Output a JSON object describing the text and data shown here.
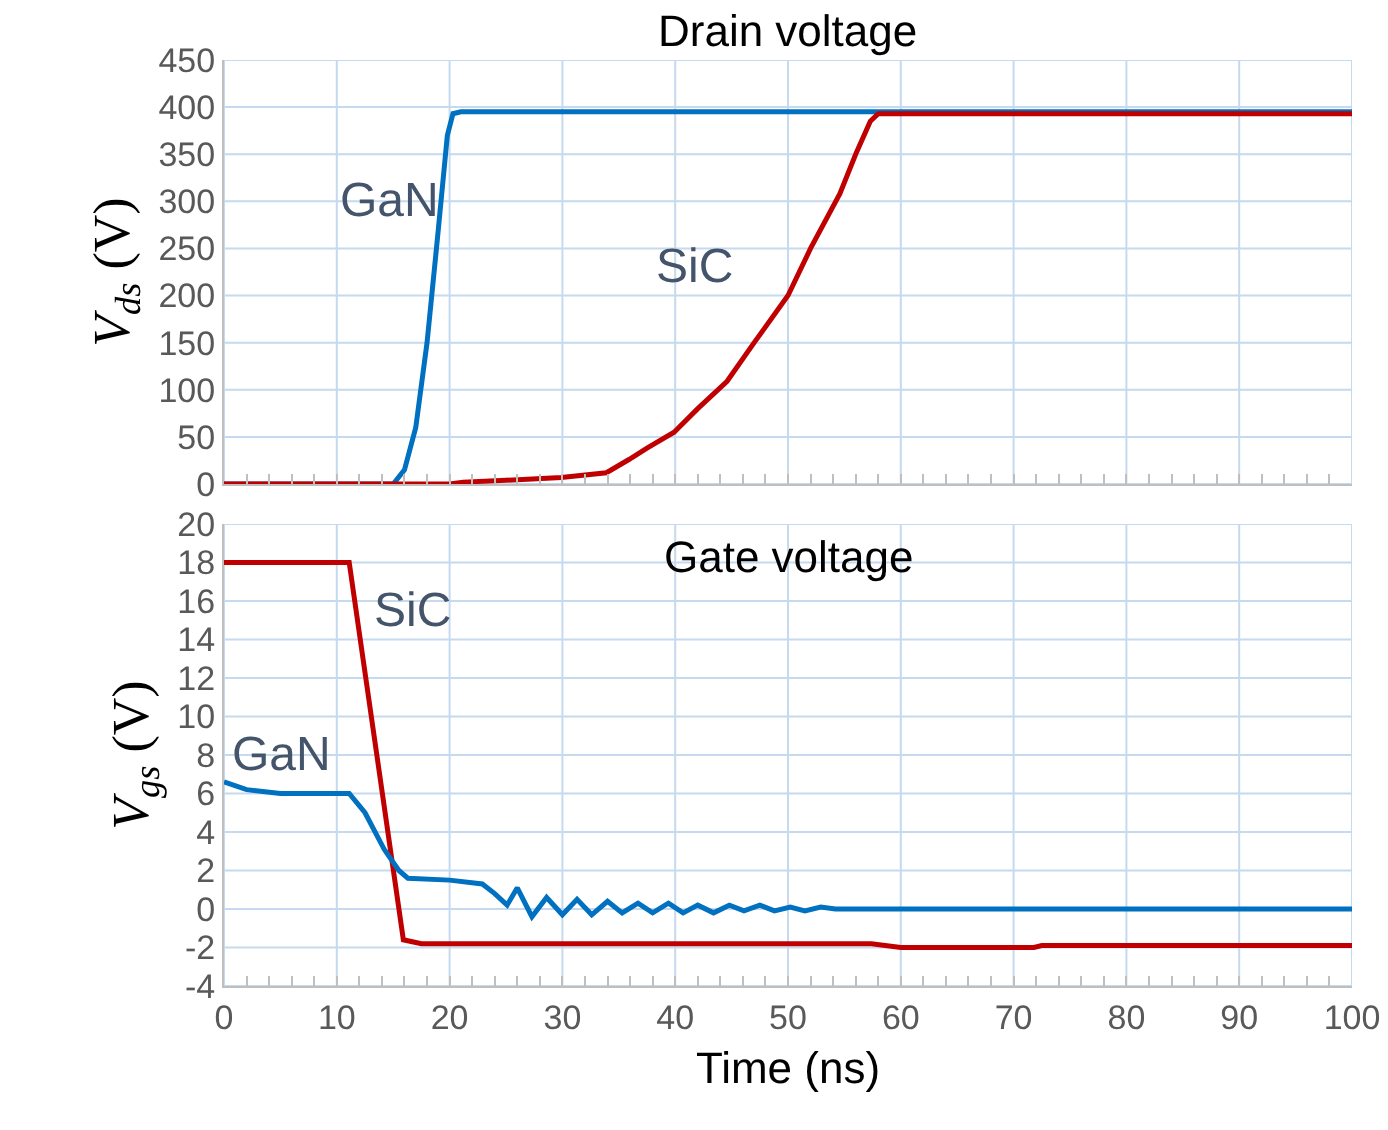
{
  "chart_data": [
    {
      "type": "line",
      "title": "Drain voltage",
      "ylabel": "V$_{ds}$ (V)",
      "xlim": [
        0,
        100
      ],
      "ylim": [
        0,
        450
      ],
      "grid": true,
      "tick_labels": "y",
      "xticks": [
        0,
        {
          "value": 2,
          "label": null
        },
        {
          "value": 4,
          "label": null
        },
        {
          "value": 6,
          "label": null
        },
        {
          "value": 8,
          "label": null
        },
        10,
        {
          "value": 12,
          "label": null
        },
        {
          "value": 14,
          "label": null
        },
        {
          "value": 16,
          "label": null
        },
        {
          "value": 18,
          "label": null
        },
        20,
        {
          "value": 22,
          "label": null
        },
        {
          "value": 24,
          "label": null
        },
        {
          "value": 26,
          "label": null
        },
        {
          "value": 28,
          "label": null
        },
        30,
        {
          "value": 32,
          "label": null
        },
        {
          "value": 34,
          "label": null
        },
        {
          "value": 36,
          "label": null
        },
        {
          "value": 38,
          "label": null
        },
        40,
        {
          "value": 42,
          "label": null
        },
        {
          "value": 44,
          "label": null
        },
        {
          "value": 46,
          "label": null
        },
        {
          "value": 48,
          "label": null
        },
        50,
        {
          "value": 52,
          "label": null
        },
        {
          "value": 54,
          "label": null
        },
        {
          "value": 56,
          "label": null
        },
        {
          "value": 58,
          "label": null
        },
        60,
        {
          "value": 62,
          "label": null
        },
        {
          "value": 64,
          "label": null
        },
        {
          "value": 66,
          "label": null
        },
        {
          "value": 68,
          "label": null
        },
        70,
        {
          "value": 72,
          "label": null
        },
        {
          "value": 74,
          "label": null
        },
        {
          "value": 76,
          "label": null
        },
        {
          "value": 78,
          "label": null
        },
        80,
        {
          "value": 82,
          "label": null
        },
        {
          "value": 84,
          "label": null
        },
        {
          "value": 86,
          "label": null
        },
        {
          "value": 88,
          "label": null
        },
        90,
        {
          "value": 92,
          "label": null
        },
        {
          "value": 94,
          "label": null
        },
        {
          "value": 96,
          "label": null
        },
        {
          "value": 98,
          "label": null
        },
        100
      ],
      "yticks": [
        0,
        50,
        100,
        150,
        200,
        250,
        300,
        350,
        400,
        450
      ],
      "series": [
        {
          "name": "GaN",
          "color": "#0070c0",
          "x": [
            0,
            15,
            16,
            17,
            18,
            19,
            19.8,
            20.3,
            21,
            100
          ],
          "values": [
            0,
            0,
            15,
            60,
            150,
            270,
            370,
            393,
            395,
            395
          ]
        },
        {
          "name": "SiC",
          "color": "#c00000",
          "x": [
            0,
            20,
            21.2,
            25,
            29.9,
            33.9,
            35.9,
            37.5,
            39.9,
            42,
            44.6,
            47,
            50,
            52,
            54.6,
            56,
            57.3,
            58,
            100
          ],
          "values": [
            0,
            0,
            2,
            4,
            7,
            12,
            26,
            38,
            55,
            80,
            109,
            150,
            200,
            250,
            308,
            350,
            385,
            393,
            393
          ]
        }
      ]
    },
    {
      "type": "line",
      "title": "Gate voltage",
      "xlabel": "Time (ns)",
      "ylabel": "V$_{gs}$ (V)",
      "xlim": [
        0,
        100
      ],
      "ylim": [
        -4,
        20
      ],
      "grid": true,
      "xticks": [
        0,
        {
          "value": 2,
          "label": null
        },
        {
          "value": 4,
          "label": null
        },
        {
          "value": 6,
          "label": null
        },
        {
          "value": 8,
          "label": null
        },
        10,
        {
          "value": 12,
          "label": null
        },
        {
          "value": 14,
          "label": null
        },
        {
          "value": 16,
          "label": null
        },
        {
          "value": 18,
          "label": null
        },
        20,
        {
          "value": 22,
          "label": null
        },
        {
          "value": 24,
          "label": null
        },
        {
          "value": 26,
          "label": null
        },
        {
          "value": 28,
          "label": null
        },
        30,
        {
          "value": 32,
          "label": null
        },
        {
          "value": 34,
          "label": null
        },
        {
          "value": 36,
          "label": null
        },
        {
          "value": 38,
          "label": null
        },
        40,
        {
          "value": 42,
          "label": null
        },
        {
          "value": 44,
          "label": null
        },
        {
          "value": 46,
          "label": null
        },
        {
          "value": 48,
          "label": null
        },
        50,
        {
          "value": 52,
          "label": null
        },
        {
          "value": 54,
          "label": null
        },
        {
          "value": 56,
          "label": null
        },
        {
          "value": 58,
          "label": null
        },
        60,
        {
          "value": 62,
          "label": null
        },
        {
          "value": 64,
          "label": null
        },
        {
          "value": 66,
          "label": null
        },
        {
          "value": 68,
          "label": null
        },
        70,
        {
          "value": 72,
          "label": null
        },
        {
          "value": 74,
          "label": null
        },
        {
          "value": 76,
          "label": null
        },
        {
          "value": 78,
          "label": null
        },
        80,
        {
          "value": 82,
          "label": null
        },
        {
          "value": 84,
          "label": null
        },
        {
          "value": 86,
          "label": null
        },
        {
          "value": 88,
          "label": null
        },
        90,
        {
          "value": 92,
          "label": null
        },
        {
          "value": 94,
          "label": null
        },
        {
          "value": 96,
          "label": null
        },
        {
          "value": 98,
          "label": null
        },
        100
      ],
      "yticks": [
        -4,
        -2,
        0,
        2,
        4,
        6,
        8,
        10,
        12,
        14,
        16,
        18,
        20
      ],
      "series": [
        {
          "name": "SiC",
          "color": "#c00000",
          "x": [
            0,
            11.1,
            15.9,
            17.5,
            57.4,
            60,
            71.8,
            72.5,
            100
          ],
          "values": [
            18,
            18,
            -1.6,
            -1.8,
            -1.8,
            -2,
            -2,
            -1.9,
            -1.9
          ]
        },
        {
          "name": "GaN",
          "color": "#0070c0",
          "x": [
            0,
            2,
            5,
            11.1,
            12.5,
            14.2,
            15.5,
            16.3,
            20,
            22.9,
            24,
            25.1,
            26,
            27.3,
            28.6,
            30,
            31.3,
            32.6,
            34,
            35.3,
            36.7,
            38,
            39.4,
            40.7,
            42,
            43.4,
            44.8,
            46.1,
            47.5,
            48.8,
            50.2,
            51.5,
            52.9,
            54.2,
            56,
            100
          ],
          "values": [
            6.6,
            6.2,
            6,
            6,
            5,
            3.1,
            2,
            1.6,
            1.5,
            1.3,
            0.8,
            0.2,
            1.1,
            -0.4,
            0.6,
            -0.3,
            0.5,
            -0.3,
            0.4,
            -0.2,
            0.3,
            -0.2,
            0.3,
            -0.2,
            0.2,
            -0.2,
            0.2,
            -0.1,
            0.2,
            -0.1,
            0.1,
            -0.1,
            0.1,
            0,
            0,
            0
          ]
        }
      ]
    }
  ]
}
